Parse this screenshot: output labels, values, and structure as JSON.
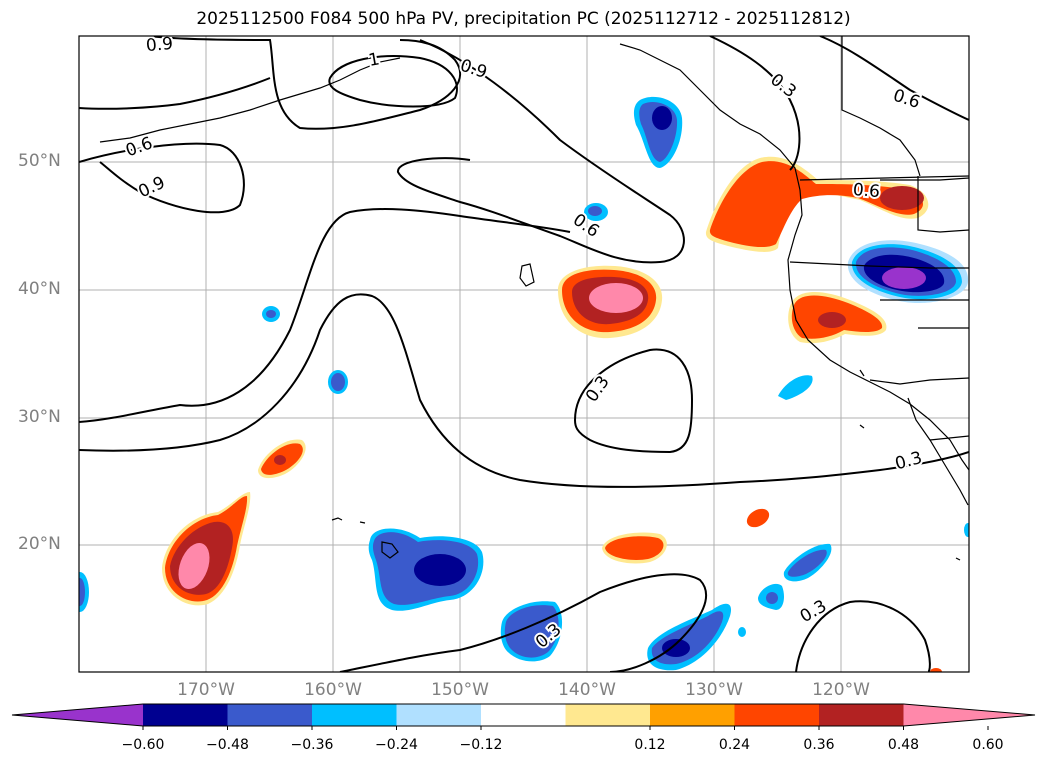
{
  "title": "2025112500 F084 500 hPa PV, precipitation PC (2025112712 - 2025112812)",
  "lat_labels": [
    "50°N",
    "40°N",
    "30°N",
    "20°N"
  ],
  "lon_labels": [
    "170°W",
    "160°W",
    "150°W",
    "140°W",
    "130°W",
    "120°W"
  ],
  "contour_labels": [
    "0.9",
    "1",
    "0.9",
    "0.6",
    "0.9",
    "0.6",
    "0.3",
    "0.6",
    "0.6",
    "0.3",
    "0.3",
    "0.3",
    "0.3"
  ],
  "colorbar": {
    "ticks": [
      "−0.60",
      "−0.48",
      "−0.36",
      "−0.24",
      "−0.12",
      "0.12",
      "0.24",
      "0.36",
      "0.48",
      "0.60"
    ],
    "colors": [
      "#9933cc",
      "#000090",
      "#3a5acc",
      "#00bfff",
      "#b0e0ff",
      "#ffffff",
      "#ffe890",
      "#ffa000",
      "#ff4500",
      "#b22222",
      "#ff88aa"
    ]
  }
}
